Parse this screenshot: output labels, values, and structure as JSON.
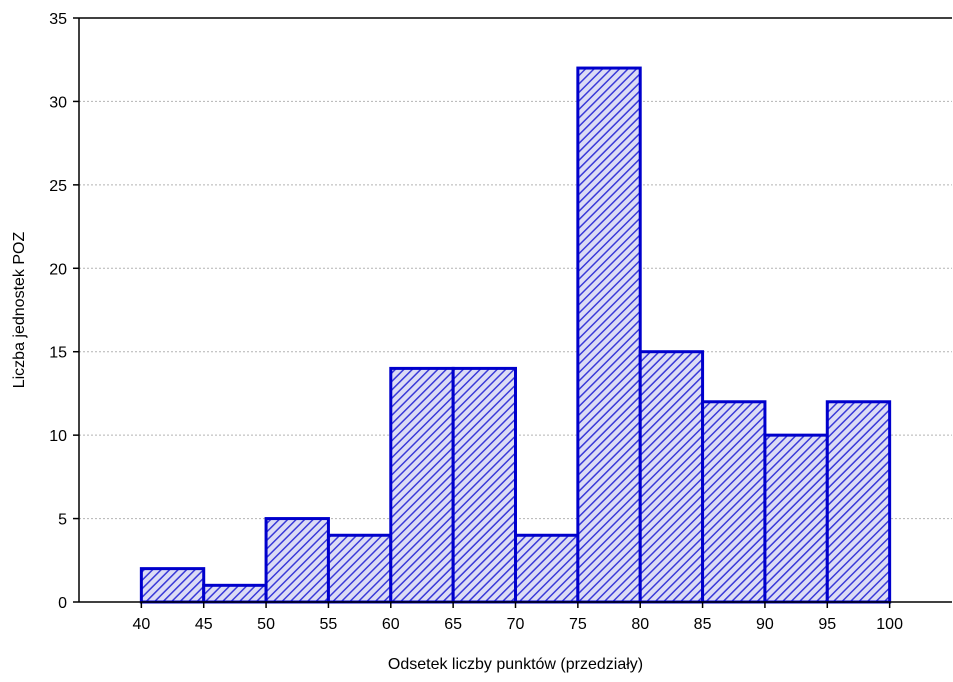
{
  "chart_data": {
    "type": "bar",
    "title": "",
    "xlabel": "Odsetek liczby punktów (przedziały)",
    "ylabel": "Liczba jednostek POZ",
    "bin_edges": [
      40,
      45,
      50,
      55,
      60,
      65,
      70,
      75,
      80,
      85,
      90,
      95,
      100
    ],
    "values": [
      2,
      1,
      5,
      4,
      14,
      14,
      4,
      32,
      15,
      12,
      10,
      12
    ],
    "x_ticks": [
      40,
      45,
      50,
      55,
      60,
      65,
      70,
      75,
      80,
      85,
      90,
      95,
      100
    ],
    "y_ticks": [
      0,
      5,
      10,
      15,
      20,
      25,
      30,
      35
    ],
    "xlim": [
      35,
      105
    ],
    "ylim": [
      0,
      35
    ],
    "grid": true,
    "legend": "none",
    "colors": {
      "bar_fill": "#dcdcf5",
      "bar_hatch": "#3a3ad8",
      "bar_edge": "#0000cc",
      "grid": "#b4b4b4",
      "axis": "#000000"
    }
  }
}
